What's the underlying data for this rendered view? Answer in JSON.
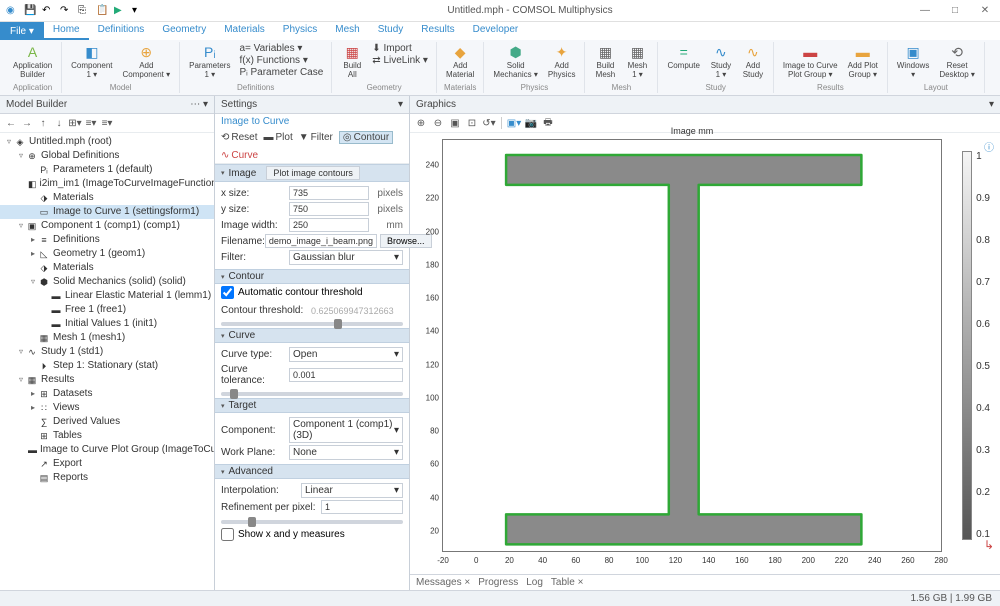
{
  "title": "Untitled.mph - COMSOL Multiphysics",
  "tabs": [
    "Home",
    "Definitions",
    "Geometry",
    "Materials",
    "Physics",
    "Mesh",
    "Study",
    "Results",
    "Developer"
  ],
  "active_tab": 0,
  "file_label": "File ▾",
  "ribbon": {
    "app": {
      "builder": "Application\nBuilder",
      "group": "Application"
    },
    "model": {
      "component": "Component\n1 ▾",
      "add": "Add\nComponent ▾",
      "group": "Model"
    },
    "defs": {
      "params": "Parameters\n1 ▾",
      "vars": "a= Variables ▾",
      "fx": "f(x) Functions ▾",
      "pcase": "Pᵢ  Parameter Case",
      "group": "Definitions"
    },
    "geom": {
      "build": "Build\nAll",
      "import": "⬇ Import",
      "livelink": "⇄ LiveLink ▾",
      "group": "Geometry"
    },
    "mat": {
      "addmat": "Add\nMaterial",
      "group": "Materials"
    },
    "phys": {
      "solid": "Solid\nMechanics ▾",
      "addphy": "Add\nPhysics",
      "group": "Physics"
    },
    "mesh": {
      "build": "Build\nMesh",
      "mesh1": "Mesh\n1 ▾",
      "group": "Mesh"
    },
    "study": {
      "compute": "Compute",
      "study1": "Study\n1 ▾",
      "addstudy": "Add\nStudy",
      "group": "Study"
    },
    "results": {
      "i2c": "Image to Curve\nPlot Group ▾",
      "addplot": "Add Plot\nGroup ▾",
      "group": "Results"
    },
    "layout": {
      "windows": "Windows\n▾",
      "reset": "Reset\nDesktop ▾",
      "group": "Layout"
    }
  },
  "model_builder": {
    "title": "Model Builder",
    "tree": [
      {
        "d": 0,
        "t": "◈",
        "l": "Untitled.mph  (root)",
        "e": "▿"
      },
      {
        "d": 1,
        "t": "⊕",
        "l": "Global Definitions",
        "e": "▿"
      },
      {
        "d": 2,
        "t": "Pᵢ",
        "l": "Parameters 1  (default)"
      },
      {
        "d": 2,
        "t": "◧",
        "l": "i2im_im1 (ImageToCurveImageFunction)"
      },
      {
        "d": 2,
        "t": "⬗",
        "l": "Materials"
      },
      {
        "d": 2,
        "t": "▭",
        "l": "Image to Curve 1  (settingsform1)",
        "sel": true
      },
      {
        "d": 1,
        "t": "▣",
        "l": "Component 1 (comp1) (comp1)",
        "e": "▿"
      },
      {
        "d": 2,
        "t": "≡",
        "l": "Definitions",
        "e": "▸"
      },
      {
        "d": 2,
        "t": "◺",
        "l": "Geometry 1  (geom1)",
        "e": "▸"
      },
      {
        "d": 2,
        "t": "⬗",
        "l": "Materials"
      },
      {
        "d": 2,
        "t": "⬢",
        "l": "Solid Mechanics (solid) (solid)",
        "e": "▿"
      },
      {
        "d": 3,
        "t": "▬",
        "l": "Linear Elastic Material 1  (lemm1)"
      },
      {
        "d": 3,
        "t": "▬",
        "l": "Free 1  (free1)"
      },
      {
        "d": 3,
        "t": "▬",
        "l": "Initial Values 1  (init1)"
      },
      {
        "d": 2,
        "t": "▦",
        "l": "Mesh 1  (mesh1)"
      },
      {
        "d": 1,
        "t": "∿",
        "l": "Study 1 (std1)",
        "e": "▿"
      },
      {
        "d": 2,
        "t": "⏵",
        "l": "Step 1: Stationary  (stat)"
      },
      {
        "d": 1,
        "t": "▦",
        "l": "Results",
        "e": "▿"
      },
      {
        "d": 2,
        "t": "⊞",
        "l": "Datasets",
        "e": "▸"
      },
      {
        "d": 2,
        "t": "∷",
        "l": "Views",
        "e": "▸"
      },
      {
        "d": 2,
        "t": "∑",
        "l": "Derived Values"
      },
      {
        "d": 2,
        "t": "⊞",
        "l": "Tables"
      },
      {
        "d": 2,
        "t": "▬",
        "l": "Image to Curve Plot Group  (ImageToCurvePlotGroup)"
      },
      {
        "d": 2,
        "t": "↗",
        "l": "Export"
      },
      {
        "d": 2,
        "t": "▤",
        "l": "Reports"
      }
    ]
  },
  "settings": {
    "title": "Settings",
    "subtitle": "Image to Curve",
    "actions": {
      "reset": "Reset",
      "plot": "Plot",
      "filter": "Filter",
      "contour": "Contour",
      "curve": "Curve",
      "plot_contours": "Plot image contours"
    },
    "image": {
      "hdr": "Image",
      "xsize_l": "x size:",
      "xsize": "735",
      "ysize_l": "y size:",
      "ysize": "750",
      "width_l": "Image width:",
      "width": "250",
      "fn_l": "Filename:",
      "fn": "demo_image_i_beam.png",
      "browse": "Browse...",
      "filter_l": "Filter:",
      "filter": "Gaussian blur",
      "px": "pixels",
      "mm": "mm"
    },
    "contour": {
      "hdr": "Contour",
      "auto": "Automatic contour threshold",
      "thresh_l": "Contour threshold:",
      "thresh": "0.625069947312663"
    },
    "curve": {
      "hdr": "Curve",
      "type_l": "Curve type:",
      "type": "Open",
      "tol_l": "Curve tolerance:",
      "tol": "0.001"
    },
    "target": {
      "hdr": "Target",
      "comp_l": "Component:",
      "comp": "Component 1 (comp1) (3D)",
      "wp_l": "Work Plane:",
      "wp": "None"
    },
    "advanced": {
      "hdr": "Advanced",
      "interp_l": "Interpolation:",
      "interp": "Linear",
      "ref_l": "Refinement per pixel:",
      "ref": "1"
    },
    "showxy": "Show x and y measures"
  },
  "graphics": {
    "title": "Graphics",
    "plot_title": "Image mm",
    "yticks": [
      20,
      40,
      60,
      80,
      100,
      120,
      140,
      160,
      180,
      200,
      220,
      240
    ],
    "xticks": [
      -20,
      0,
      20,
      40,
      60,
      80,
      100,
      120,
      140,
      160,
      180,
      200,
      220,
      240,
      260,
      280
    ],
    "xrange": [
      -20,
      280
    ],
    "yrange": [
      8,
      255
    ],
    "cb_ticks": [
      "1",
      "0.9",
      "0.8",
      "0.7",
      "0.6",
      "0.5",
      "0.4",
      "0.3",
      "0.2",
      "0.1"
    ],
    "shape": {
      "fill": "#8a8a8a",
      "stroke": "#2fa836",
      "stroke_w": 1.5
    },
    "bottom_tabs": [
      "Messages ×",
      "Progress",
      "Log",
      "Table ×"
    ]
  },
  "status": {
    "mem": "1.56 GB | 1.99 GB"
  }
}
